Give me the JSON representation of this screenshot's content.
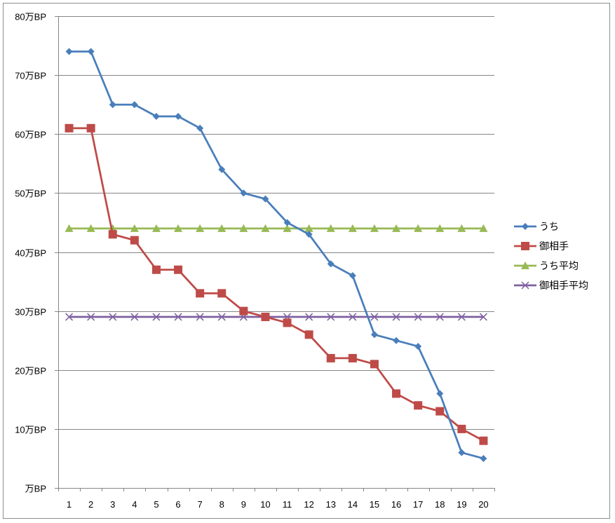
{
  "chart_data": {
    "type": "line",
    "categories": [
      "1",
      "2",
      "3",
      "4",
      "5",
      "6",
      "7",
      "8",
      "9",
      "10",
      "11",
      "12",
      "13",
      "14",
      "15",
      "16",
      "17",
      "18",
      "19",
      "20"
    ],
    "ylim": [
      0,
      800000
    ],
    "y_ticks": [
      {
        "value": 0,
        "label": "万BP"
      },
      {
        "value": 100000,
        "label": "10万BP"
      },
      {
        "value": 200000,
        "label": "20万BP"
      },
      {
        "value": 300000,
        "label": "30万BP"
      },
      {
        "value": 400000,
        "label": "40万BP"
      },
      {
        "value": 500000,
        "label": "50万BP"
      },
      {
        "value": 600000,
        "label": "60万BP"
      },
      {
        "value": 700000,
        "label": "70万BP"
      },
      {
        "value": 800000,
        "label": "80万BP"
      }
    ],
    "grid": true,
    "legend_position": "right",
    "series": [
      {
        "name": "うち",
        "color": "#4a7ebb",
        "marker": "diamond",
        "values": [
          740000,
          740000,
          650000,
          650000,
          630000,
          630000,
          610000,
          540000,
          500000,
          490000,
          450000,
          430000,
          380000,
          360000,
          260000,
          250000,
          240000,
          160000,
          60000,
          50000
        ]
      },
      {
        "name": "御相手",
        "color": "#be4b48",
        "marker": "square",
        "values": [
          610000,
          610000,
          430000,
          420000,
          370000,
          370000,
          330000,
          330000,
          300000,
          290000,
          280000,
          260000,
          220000,
          220000,
          210000,
          160000,
          140000,
          130000,
          100000,
          80000
        ]
      },
      {
        "name": "うち平均",
        "color": "#98b954",
        "marker": "triangle",
        "values": [
          440000,
          440000,
          440000,
          440000,
          440000,
          440000,
          440000,
          440000,
          440000,
          440000,
          440000,
          440000,
          440000,
          440000,
          440000,
          440000,
          440000,
          440000,
          440000,
          440000
        ]
      },
      {
        "name": "御相手平均",
        "color": "#7d60a0",
        "marker": "x",
        "values": [
          290000,
          290000,
          290000,
          290000,
          290000,
          290000,
          290000,
          290000,
          290000,
          290000,
          290000,
          290000,
          290000,
          290000,
          290000,
          290000,
          290000,
          290000,
          290000,
          290000
        ]
      }
    ]
  }
}
